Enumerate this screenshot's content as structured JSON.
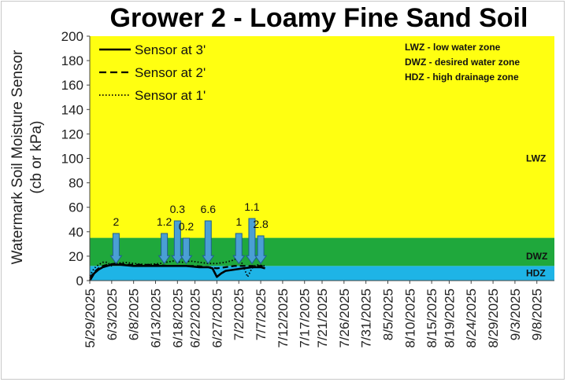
{
  "chart_data": {
    "type": "line",
    "title": "Grower 2 - Loamy Fine Sand Soil",
    "ylabel_line1": "Watermark Soil Moisture Sensor",
    "ylabel_line2": "(cb or kPa)",
    "xlabel": "",
    "ylim": [
      0,
      200
    ],
    "yticks": [
      0,
      20,
      40,
      60,
      80,
      100,
      120,
      140,
      160,
      180,
      200
    ],
    "xlim": [
      "2025-05-29",
      "2025-09-12"
    ],
    "xtick_labels": [
      "5/29/2025",
      "6/3/2025",
      "6/8/2025",
      "6/13/2025",
      "6/18/2025",
      "6/22/2025",
      "6/27/2025",
      "7/2/2025",
      "7/7/2025",
      "7/12/2025",
      "7/17/2025",
      "7/21/2025",
      "7/26/2025",
      "7/31/2025",
      "8/5/2025",
      "8/10/2025",
      "8/15/2025",
      "8/19/2025",
      "8/24/2025",
      "8/29/2025",
      "9/3/2025",
      "9/8/2025"
    ],
    "xtick_dates": [
      "2025-05-29",
      "2025-06-03",
      "2025-06-08",
      "2025-06-13",
      "2025-06-18",
      "2025-06-22",
      "2025-06-27",
      "2025-07-02",
      "2025-07-07",
      "2025-07-12",
      "2025-07-17",
      "2025-07-21",
      "2025-07-26",
      "2025-07-31",
      "2025-08-05",
      "2025-08-10",
      "2025-08-15",
      "2025-08-19",
      "2025-08-24",
      "2025-08-29",
      "2025-09-03",
      "2025-09-08"
    ],
    "grid": false,
    "legend_position": "top-left",
    "zones": [
      {
        "name": "HDZ",
        "from": 0,
        "to": 12,
        "color": "#1eb4e6"
      },
      {
        "name": "DWZ",
        "from": 12,
        "to": 35,
        "color": "#1fa83c"
      },
      {
        "name": "LWZ",
        "from": 35,
        "to": 200,
        "color": "#ffff11"
      }
    ],
    "zone_key": [
      "LWZ  - low water zone",
      "DWZ - desired water zone",
      "HDZ - high drainage zone"
    ],
    "series": [
      {
        "name": "Sensor at 3'",
        "style": "solid",
        "points": [
          [
            "2025-05-29",
            0
          ],
          [
            "2025-05-30",
            6
          ],
          [
            "2025-05-31",
            9
          ],
          [
            "2025-06-01",
            11
          ],
          [
            "2025-06-02",
            12
          ],
          [
            "2025-06-03",
            13
          ],
          [
            "2025-06-05",
            13
          ],
          [
            "2025-06-08",
            12
          ],
          [
            "2025-06-11",
            12
          ],
          [
            "2025-06-14",
            12
          ],
          [
            "2025-06-17",
            12
          ],
          [
            "2025-06-20",
            12
          ],
          [
            "2025-06-23",
            11
          ],
          [
            "2025-06-25",
            11
          ],
          [
            "2025-06-26",
            10
          ],
          [
            "2025-06-27",
            3
          ],
          [
            "2025-06-28",
            6
          ],
          [
            "2025-06-29",
            8
          ],
          [
            "2025-07-01",
            9
          ],
          [
            "2025-07-03",
            10
          ],
          [
            "2025-07-05",
            11
          ],
          [
            "2025-07-07",
            11
          ],
          [
            "2025-07-08",
            10
          ]
        ]
      },
      {
        "name": "Sensor at 2'",
        "style": "dashed",
        "points": [
          [
            "2025-05-29",
            2
          ],
          [
            "2025-05-30",
            7
          ],
          [
            "2025-05-31",
            10
          ],
          [
            "2025-06-01",
            12
          ],
          [
            "2025-06-02",
            13
          ],
          [
            "2025-06-04",
            14
          ],
          [
            "2025-06-07",
            13
          ],
          [
            "2025-06-10",
            13
          ],
          [
            "2025-06-13",
            13
          ],
          [
            "2025-06-16",
            12
          ],
          [
            "2025-06-19",
            12
          ],
          [
            "2025-06-22",
            12
          ],
          [
            "2025-06-25",
            11
          ],
          [
            "2025-06-27",
            10
          ],
          [
            "2025-06-29",
            11
          ],
          [
            "2025-07-01",
            12
          ],
          [
            "2025-07-03",
            12
          ],
          [
            "2025-07-05",
            12
          ],
          [
            "2025-07-08",
            12
          ]
        ]
      },
      {
        "name": "Sensor at 1'",
        "style": "dotted",
        "points": [
          [
            "2025-05-29",
            4
          ],
          [
            "2025-05-30",
            10
          ],
          [
            "2025-05-31",
            13
          ],
          [
            "2025-06-01",
            15
          ],
          [
            "2025-06-02",
            15
          ],
          [
            "2025-06-03",
            12
          ],
          [
            "2025-06-04",
            14
          ],
          [
            "2025-06-06",
            15
          ],
          [
            "2025-06-08",
            14
          ],
          [
            "2025-06-11",
            13
          ],
          [
            "2025-06-14",
            14
          ],
          [
            "2025-06-17",
            16
          ],
          [
            "2025-06-19",
            15
          ],
          [
            "2025-06-21",
            16
          ],
          [
            "2025-06-23",
            15
          ],
          [
            "2025-06-25",
            14
          ],
          [
            "2025-06-27",
            14
          ],
          [
            "2025-06-29",
            15
          ],
          [
            "2025-07-01",
            17
          ],
          [
            "2025-07-02",
            20
          ],
          [
            "2025-07-03",
            12
          ],
          [
            "2025-07-04",
            3
          ],
          [
            "2025-07-05",
            10
          ],
          [
            "2025-07-06",
            13
          ],
          [
            "2025-07-08",
            12
          ]
        ]
      }
    ],
    "irrigation_events": [
      {
        "date": "2025-06-04",
        "amount": "2"
      },
      {
        "date": "2025-06-15",
        "amount": "1.2"
      },
      {
        "date": "2025-06-18",
        "amount": "0.3"
      },
      {
        "date": "2025-06-20",
        "amount": "0.2"
      },
      {
        "date": "2025-06-25",
        "amount": "6.6"
      },
      {
        "date": "2025-07-02",
        "amount": "1"
      },
      {
        "date": "2025-07-05",
        "amount": "1.1"
      },
      {
        "date": "2025-07-07",
        "amount": "2.8"
      }
    ],
    "arrow_color": "#4a9fd4"
  }
}
